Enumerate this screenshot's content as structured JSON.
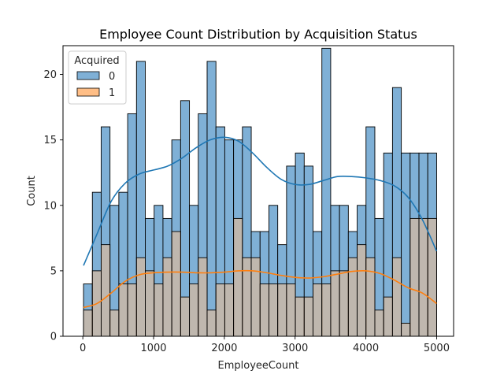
{
  "chart_data": {
    "type": "histogram",
    "title": "Employee Count Distribution by Acquisition Status",
    "xlabel": "EmployeeCount",
    "ylabel": "Count",
    "xlim": [
      -280,
      5240
    ],
    "ylim": [
      0,
      22.2
    ],
    "x_ticks": [
      0,
      1000,
      2000,
      3000,
      4000,
      5000
    ],
    "y_ticks": [
      0,
      5,
      10,
      15,
      20
    ],
    "grid": false,
    "legend": {
      "title": "Acquired",
      "placement": "top-left",
      "entries": [
        {
          "label": "0",
          "color": "#1f77b4"
        },
        {
          "label": "1",
          "color": "#ff7f0e"
        }
      ]
    },
    "bins": {
      "start": 10,
      "end": 5000,
      "count": 40
    },
    "series": [
      {
        "name": "0",
        "color": "#1f77b4",
        "fill": "#7fb0d6",
        "values": [
          4,
          11,
          16,
          10,
          11,
          17,
          21,
          9,
          10,
          9,
          15,
          18,
          10,
          17,
          21,
          16,
          15,
          15,
          16,
          8,
          8,
          10,
          7,
          13,
          14,
          13,
          8,
          22,
          10,
          10,
          8,
          10,
          16,
          9,
          14,
          19,
          14,
          14,
          14,
          14
        ],
        "kde": [
          [
            10,
            5.4
          ],
          [
            200,
            7.8
          ],
          [
            400,
            10.3
          ],
          [
            600,
            11.7
          ],
          [
            800,
            12.4
          ],
          [
            1000,
            12.7
          ],
          [
            1200,
            13.0
          ],
          [
            1400,
            13.6
          ],
          [
            1600,
            14.4
          ],
          [
            1800,
            15.0
          ],
          [
            2000,
            15.2
          ],
          [
            2200,
            14.9
          ],
          [
            2400,
            14.0
          ],
          [
            2600,
            12.9
          ],
          [
            2800,
            12.0
          ],
          [
            3000,
            11.6
          ],
          [
            3200,
            11.6
          ],
          [
            3400,
            11.9
          ],
          [
            3600,
            12.2
          ],
          [
            3800,
            12.2
          ],
          [
            4000,
            12.1
          ],
          [
            4200,
            11.9
          ],
          [
            4400,
            11.5
          ],
          [
            4600,
            10.6
          ],
          [
            4800,
            8.9
          ],
          [
            5000,
            6.5
          ]
        ]
      },
      {
        "name": "1",
        "color": "#ff7f0e",
        "fill": "#ffbe86",
        "values": [
          2,
          5,
          7,
          2,
          4,
          4,
          6,
          5,
          4,
          6,
          8,
          3,
          4,
          6,
          2,
          4,
          4,
          9,
          6,
          6,
          4,
          4,
          4,
          4,
          3,
          3,
          4,
          4,
          5,
          5,
          6,
          7,
          6,
          2,
          3,
          6,
          1,
          9,
          9,
          9
        ],
        "kde": [
          [
            10,
            2.2
          ],
          [
            200,
            2.5
          ],
          [
            400,
            3.3
          ],
          [
            600,
            4.2
          ],
          [
            800,
            4.7
          ],
          [
            1000,
            4.85
          ],
          [
            1200,
            4.9
          ],
          [
            1400,
            4.9
          ],
          [
            1600,
            4.85
          ],
          [
            1800,
            4.85
          ],
          [
            2000,
            4.9
          ],
          [
            2200,
            5.0
          ],
          [
            2400,
            5.0
          ],
          [
            2600,
            4.85
          ],
          [
            2800,
            4.65
          ],
          [
            3000,
            4.5
          ],
          [
            3200,
            4.45
          ],
          [
            3400,
            4.55
          ],
          [
            3600,
            4.75
          ],
          [
            3800,
            4.95
          ],
          [
            4000,
            5.0
          ],
          [
            4200,
            4.8
          ],
          [
            4400,
            4.3
          ],
          [
            4600,
            3.7
          ],
          [
            4800,
            3.3
          ],
          [
            5000,
            2.5
          ]
        ]
      }
    ]
  }
}
